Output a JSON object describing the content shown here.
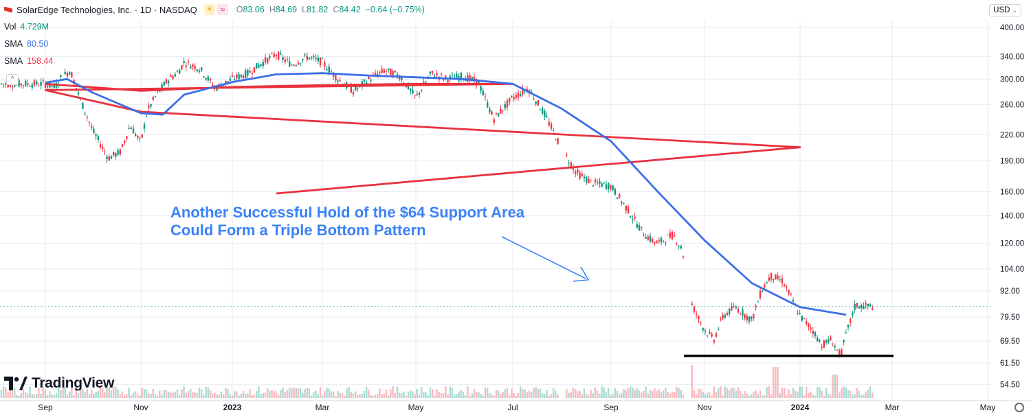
{
  "header": {
    "symbol_title": "SolarEdge Technologies, Inc. · 1D · NASDAQ",
    "open_label": "O",
    "open": "83.06",
    "high_label": "H",
    "high": "84.69",
    "low_label": "L",
    "low": "81.82",
    "close_label": "C",
    "close": "84.42",
    "change": "−0.64 (−0.75%)",
    "sun_icon": "sun-icon",
    "wave_icon": "wave-icon"
  },
  "legend": {
    "vol_label": "Vol",
    "vol_value": "4.729M",
    "sma1_label": "SMA",
    "sma1_value": "80.50",
    "sma2_label": "SMA",
    "sma2_value": "158.44"
  },
  "currency": "USD",
  "annotation": {
    "line1": "Another Successful Hold of the $64 Support Area",
    "line2": "Could Form a Triple Bottom Pattern"
  },
  "brand": "TradingView",
  "colors": {
    "up": "#089981",
    "down": "#f23645",
    "sma_fast": "#3b6ee8",
    "sma_slow": "#e8323e",
    "support": "#000000",
    "annotation": "#3b82f6",
    "grid": "#e8eaf0"
  },
  "chart_data": {
    "type": "candlestick",
    "title": "SolarEdge Technologies, Inc. · 1D · NASDAQ",
    "y_scale": "log",
    "y_ticks": [
      "400.00",
      "340.00",
      "300.00",
      "260.00",
      "220.00",
      "190.00",
      "160.00",
      "140.00",
      "120.00",
      "104.00",
      "92.00",
      "79.50",
      "69.50",
      "61.50",
      "54.50"
    ],
    "x_ticks": [
      "Sep",
      "Nov",
      "2023",
      "Mar",
      "May",
      "Jul",
      "Sep",
      "Nov",
      "2024",
      "Mar",
      "May"
    ],
    "ylim": [
      52,
      440
    ],
    "price_path": [
      [
        "Sep",
        292
      ],
      [
        "Sep+6",
        286
      ],
      [
        "Sep+10",
        302
      ],
      [
        "Sep+16",
        315
      ],
      [
        "Sep+22",
        270
      ],
      [
        "Oct",
        225
      ],
      [
        "Oct+10",
        193
      ],
      [
        "Oct+18",
        200
      ],
      [
        "Oct+24",
        232
      ],
      [
        "Nov",
        210
      ],
      [
        "Nov+4",
        250
      ],
      [
        "Nov+10",
        275
      ],
      [
        "Nov+18",
        300
      ],
      [
        "Nov+24",
        312
      ],
      [
        "Dec",
        330
      ],
      [
        "Dec+10",
        318
      ],
      [
        "Dec+20",
        285
      ],
      [
        "2023",
        300
      ],
      [
        "Jan+10",
        310
      ],
      [
        "Jan+20",
        330
      ],
      [
        "Feb",
        345
      ],
      [
        "Feb+10",
        325
      ],
      [
        "Feb+20",
        340
      ],
      [
        "Mar",
        330
      ],
      [
        "Mar+10",
        300
      ],
      [
        "Mar+20",
        280
      ],
      [
        "Apr",
        300
      ],
      [
        "Apr+10",
        315
      ],
      [
        "Apr+20",
        305
      ],
      [
        "May",
        270
      ],
      [
        "May+10",
        310
      ],
      [
        "May+20",
        300
      ],
      [
        "Jun",
        305
      ],
      [
        "Jun+10",
        295
      ],
      [
        "Jun+20",
        240
      ],
      [
        "Jul",
        270
      ],
      [
        "Jul+10",
        285
      ],
      [
        "Jul+20",
        248
      ],
      [
        "Jul+24",
        232
      ],
      [
        "Aug",
        205
      ],
      [
        "Aug+10",
        178
      ],
      [
        "Aug+20",
        168
      ],
      [
        "Sep",
        165
      ],
      [
        "Sep+10",
        146
      ],
      [
        "Sep+20",
        128
      ],
      [
        "Sep+26",
        122
      ],
      [
        "Oct",
        120
      ],
      [
        "Oct+10",
        126
      ],
      [
        "Oct+16",
        115
      ],
      [
        "Oct+20",
        88
      ],
      [
        "Nov",
        74
      ],
      [
        "Nov+6",
        70
      ],
      [
        "Nov+12",
        80
      ],
      [
        "Nov+20",
        84
      ],
      [
        "Dec",
        78
      ],
      [
        "Dec+6",
        92
      ],
      [
        "Dec+12",
        100
      ],
      [
        "Dec+20",
        97
      ],
      [
        "2024",
        80
      ],
      [
        "Jan+8",
        74
      ],
      [
        "Jan+14",
        68
      ],
      [
        "Jan+20",
        70
      ],
      [
        "Jan+26",
        64
      ],
      [
        "Feb",
        72
      ],
      [
        "Feb+6",
        85
      ],
      [
        "Feb+10",
        84.42
      ]
    ],
    "series": [
      {
        "name": "SMA",
        "value_label": "80.50",
        "values": [
          [
            "Sep",
            294
          ],
          [
            "Sep+14",
            300
          ],
          [
            "Oct",
            278
          ],
          [
            "Nov",
            248
          ],
          [
            "Nov+14",
            246
          ],
          [
            "Dec",
            275
          ],
          [
            "2023",
            295
          ],
          [
            "Feb",
            308
          ],
          [
            "Mar",
            310
          ],
          [
            "Apr",
            306
          ],
          [
            "May",
            303
          ],
          [
            "Jun",
            300
          ],
          [
            "Jul",
            292
          ],
          [
            "Aug",
            255
          ],
          [
            "Sep",
            212
          ],
          [
            "Oct",
            160
          ],
          [
            "Nov",
            122
          ],
          [
            "Dec",
            96
          ],
          [
            "2024",
            84
          ],
          [
            "Feb",
            80.5
          ]
        ]
      },
      {
        "name": "SMA",
        "value_label": "158.44",
        "values": [
          [
            "Sep",
            292
          ],
          [
            "Nov",
            281
          ],
          [
            "2023",
            287
          ],
          [
            "Mar",
            290
          ],
          [
            "May",
            292
          ],
          [
            "Jul",
            292
          ],
          [
            "Sep",
            282
          ],
          [
            "Nov",
            250
          ],
          [
            "2024",
            205
          ],
          [
            "Feb",
            158.44
          ]
        ]
      }
    ],
    "support_level": 64,
    "volume_label": "4.729M"
  }
}
